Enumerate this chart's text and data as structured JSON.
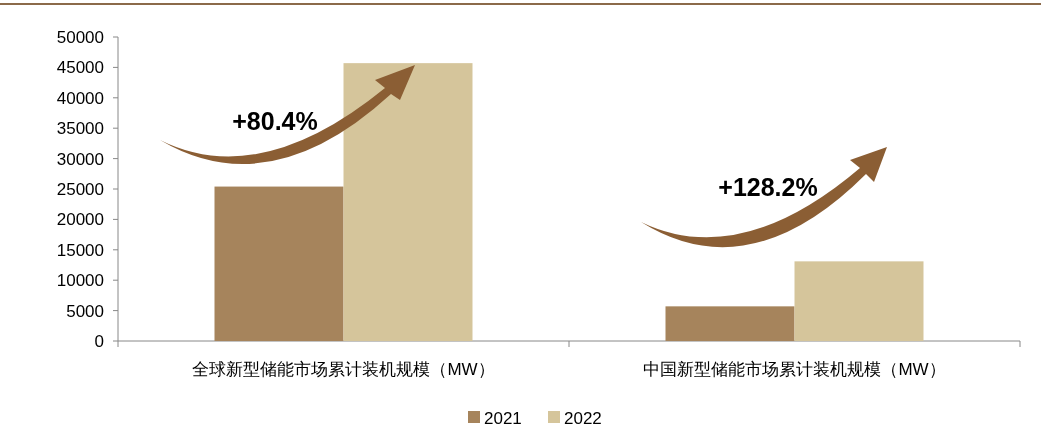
{
  "chart_data": {
    "type": "bar",
    "categories": [
      "全球新型储能市场累计装机规模（MW）",
      "中国新型储能市场累计装机规模（MW）"
    ],
    "series": [
      {
        "name": "2021",
        "color": "#a6845c",
        "values": [
          25400,
          5700
        ]
      },
      {
        "name": "2022",
        "color": "#d5c59b",
        "values": [
          45700,
          13100
        ]
      }
    ],
    "ylim": [
      0,
      50000
    ],
    "yticks": [
      0,
      5000,
      10000,
      15000,
      20000,
      25000,
      30000,
      35000,
      40000,
      45000,
      50000
    ],
    "annotations": [
      "+80.4%",
      "+128.2%"
    ],
    "legend": "bottom",
    "grid": false
  }
}
